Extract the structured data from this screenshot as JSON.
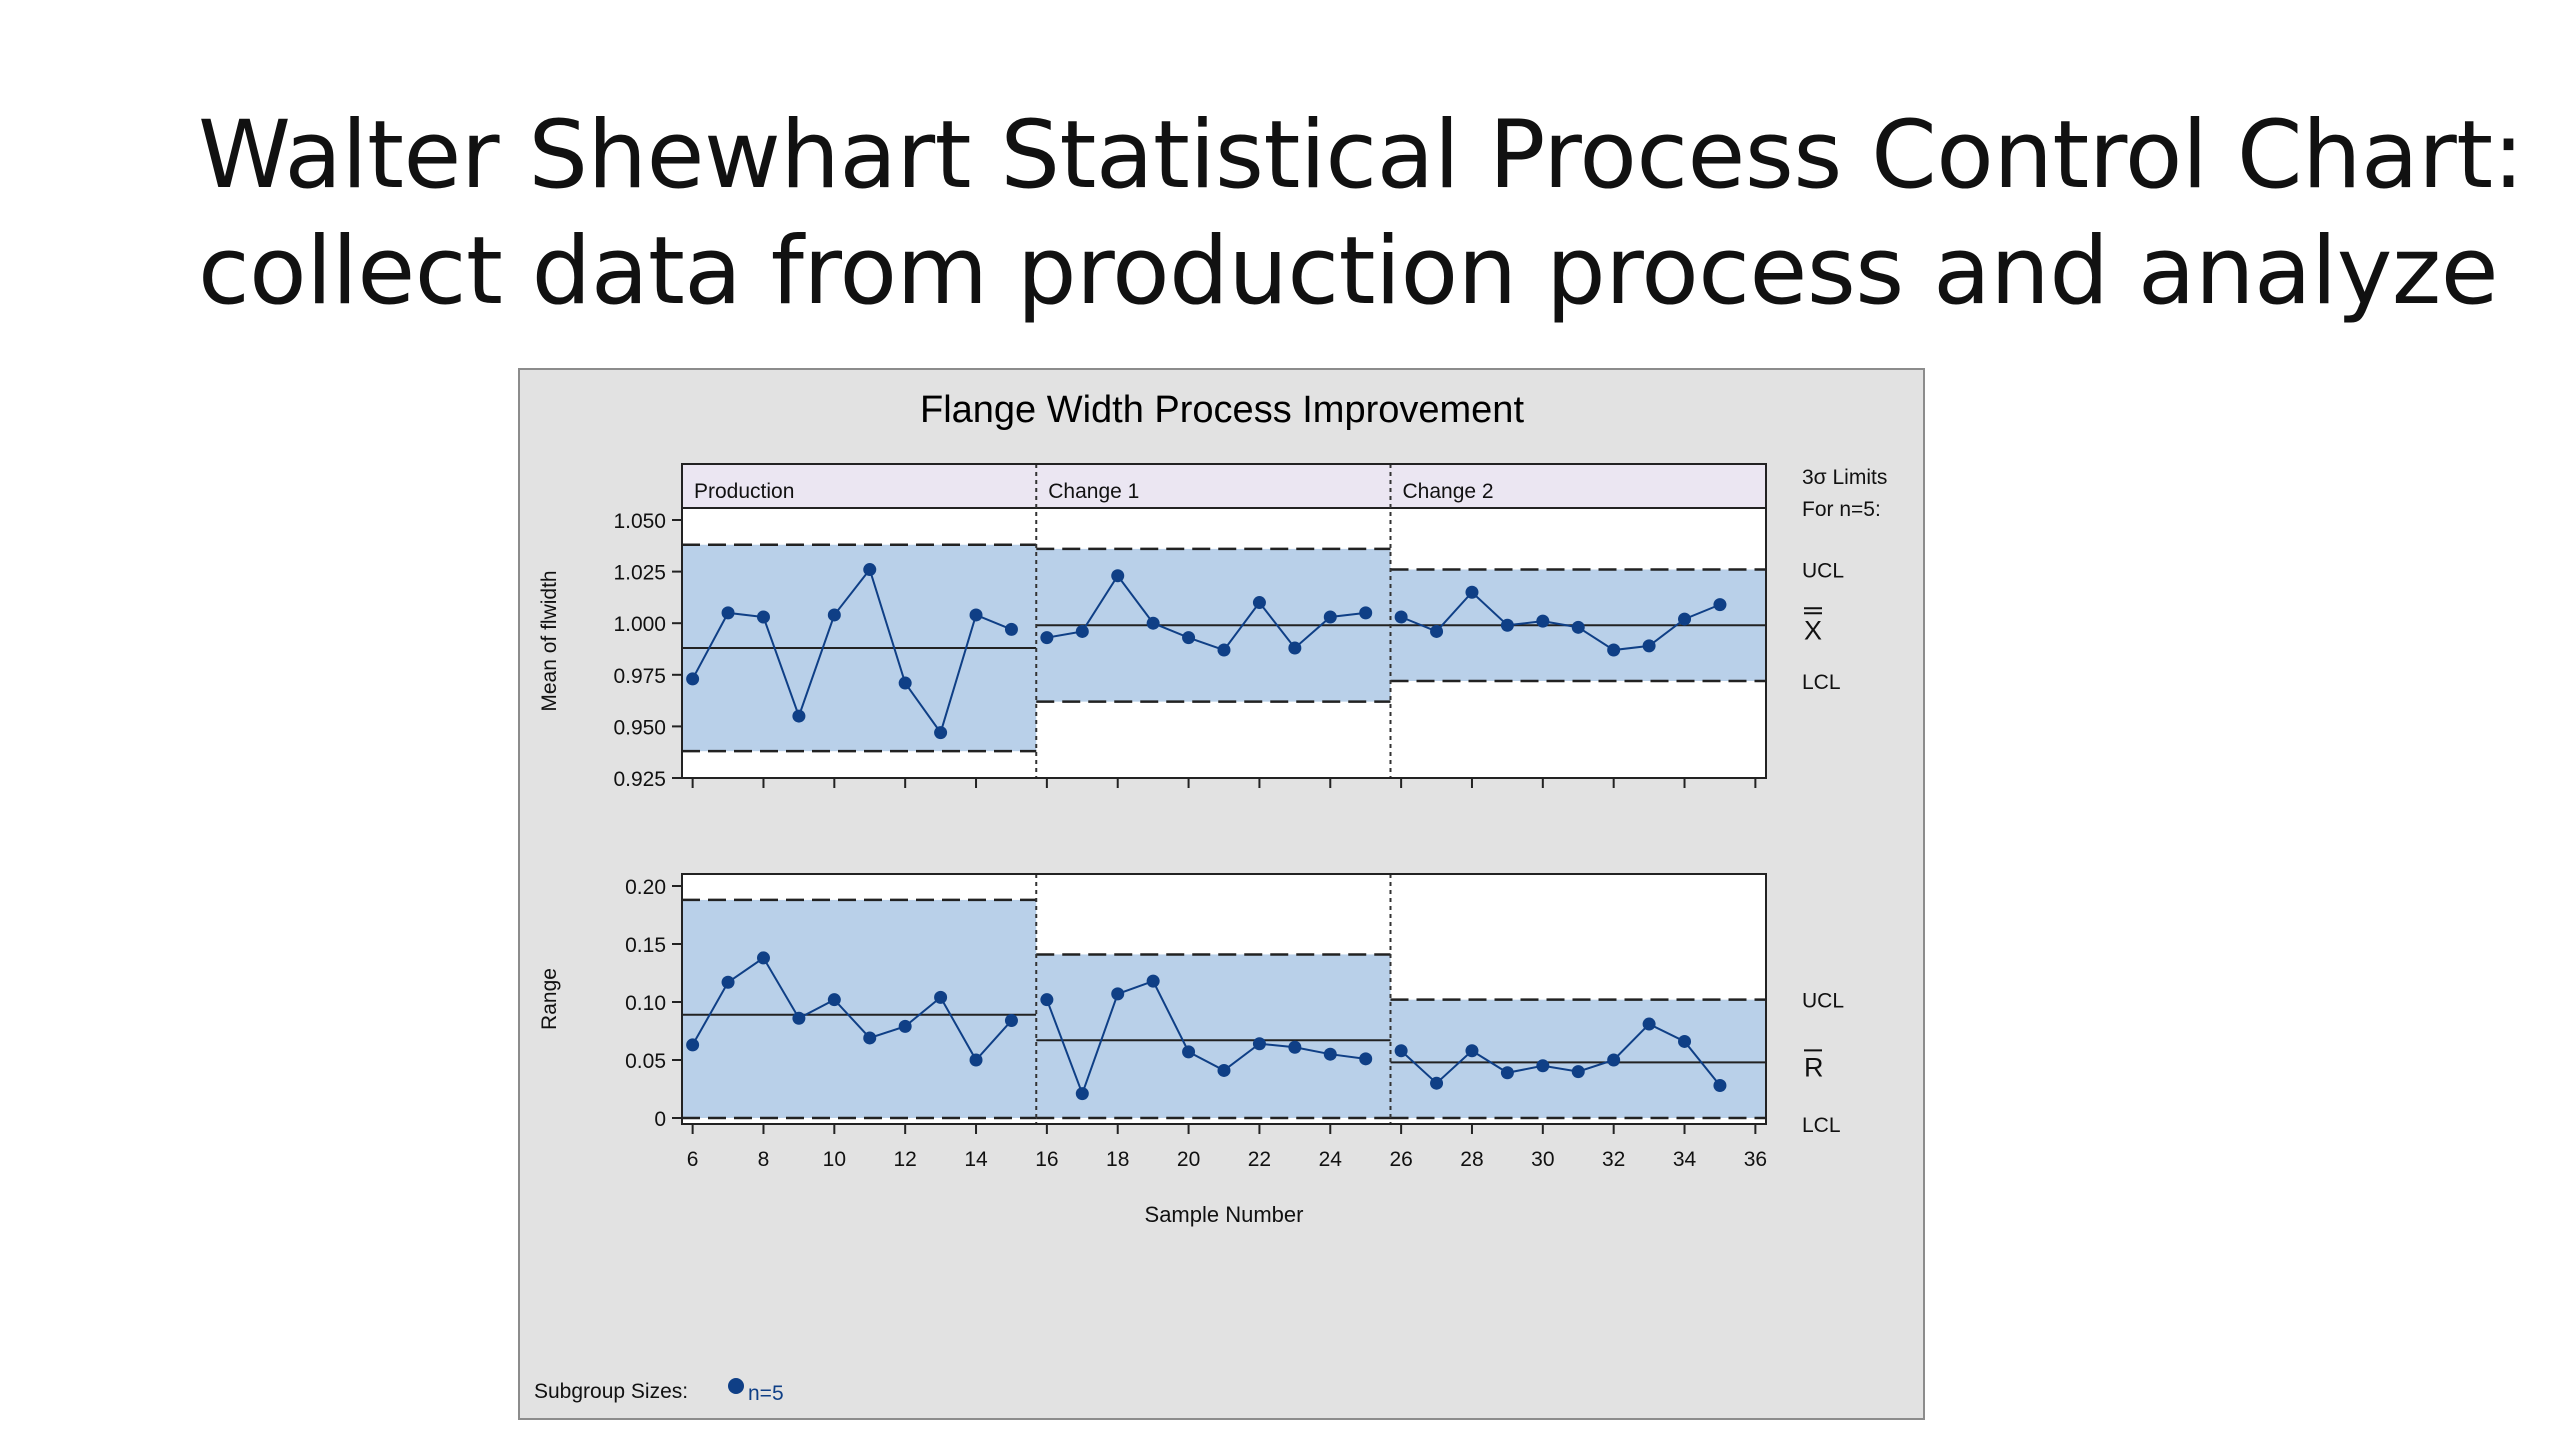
{
  "slide": {
    "title_line1": "Walter Shewhart Statistical Process Control Chart:",
    "title_line2": "collect data from production process and analyze"
  },
  "chart_data": {
    "type": "line",
    "title": "Flange Width Process Improvement",
    "limits_label_line1": "3σ Limits",
    "limits_label_line2": "For n=5:",
    "xlabel": "Sample Number",
    "x_ticks": [
      6,
      8,
      10,
      12,
      14,
      16,
      18,
      20,
      22,
      24,
      26,
      28,
      30,
      32,
      34,
      36
    ],
    "xlim": [
      5.7,
      36.3
    ],
    "phases": [
      {
        "label": "Production",
        "x_start": 5.7,
        "x_end": 15.7
      },
      {
        "label": "Change 1",
        "x_start": 15.7,
        "x_end": 25.7
      },
      {
        "label": "Change 2",
        "x_start": 25.7,
        "x_end": 36.3
      }
    ],
    "mean_chart": {
      "ylabel": "Mean of flwidth",
      "ylim": [
        0.925,
        1.05
      ],
      "y_ticks": [
        "1.050",
        "1.025",
        "1.000",
        "0.975",
        "0.950",
        "0.925"
      ],
      "y_tick_values": [
        1.05,
        1.025,
        1.0,
        0.975,
        0.95,
        0.925
      ],
      "limit_labels": {
        "ucl": "UCL",
        "center": "X",
        "lcl": "LCL"
      },
      "limits": [
        {
          "ucl": 1.038,
          "center": 0.988,
          "lcl": 0.938
        },
        {
          "ucl": 1.036,
          "center": 0.999,
          "lcl": 0.962
        },
        {
          "ucl": 1.026,
          "center": 0.999,
          "lcl": 0.972
        }
      ],
      "x": [
        6,
        7,
        8,
        9,
        10,
        11,
        12,
        13,
        14,
        15,
        16,
        17,
        18,
        19,
        20,
        21,
        22,
        23,
        24,
        25,
        26,
        27,
        28,
        29,
        30,
        31,
        32,
        33,
        34,
        35
      ],
      "values": [
        0.973,
        1.005,
        1.003,
        0.955,
        1.004,
        1.026,
        0.971,
        0.947,
        1.004,
        0.997,
        0.993,
        0.996,
        1.023,
        1.0,
        0.993,
        0.987,
        1.01,
        0.988,
        1.003,
        1.005,
        1.003,
        0.996,
        1.015,
        0.999,
        1.001,
        0.998,
        0.987,
        0.989,
        1.002,
        1.009
      ]
    },
    "range_chart": {
      "ylabel": "Range",
      "ylim": [
        0,
        0.2
      ],
      "y_ticks": [
        "0.20",
        "0.15",
        "0.10",
        "0.05",
        "0"
      ],
      "y_tick_values": [
        0.2,
        0.15,
        0.1,
        0.05,
        0
      ],
      "limit_labels": {
        "ucl": "UCL",
        "center": "R",
        "lcl": "LCL"
      },
      "limits": [
        {
          "ucl": 0.188,
          "center": 0.089,
          "lcl": 0
        },
        {
          "ucl": 0.141,
          "center": 0.067,
          "lcl": 0
        },
        {
          "ucl": 0.102,
          "center": 0.048,
          "lcl": 0
        }
      ],
      "x": [
        6,
        7,
        8,
        9,
        10,
        11,
        12,
        13,
        14,
        15,
        16,
        17,
        18,
        19,
        20,
        21,
        22,
        23,
        24,
        25,
        26,
        27,
        28,
        29,
        30,
        31,
        32,
        33,
        34,
        35
      ],
      "values": [
        0.063,
        0.117,
        0.138,
        0.086,
        0.102,
        0.069,
        0.079,
        0.104,
        0.05,
        0.084,
        0.102,
        0.021,
        0.107,
        0.118,
        0.057,
        0.041,
        0.064,
        0.061,
        0.055,
        0.051,
        0.058,
        0.03,
        0.058,
        0.039,
        0.045,
        0.04,
        0.05,
        0.081,
        0.066,
        0.028
      ]
    },
    "footer_label": "Subgroup Sizes:",
    "footer_legend": "n=5",
    "colors": {
      "frame_bg": "#e2e2e2",
      "plot_bg": "#ffffff",
      "band": "#b9d0e9",
      "header_bg": "#ebe6f2",
      "series": "#0f3f86",
      "line": "#222222"
    }
  }
}
